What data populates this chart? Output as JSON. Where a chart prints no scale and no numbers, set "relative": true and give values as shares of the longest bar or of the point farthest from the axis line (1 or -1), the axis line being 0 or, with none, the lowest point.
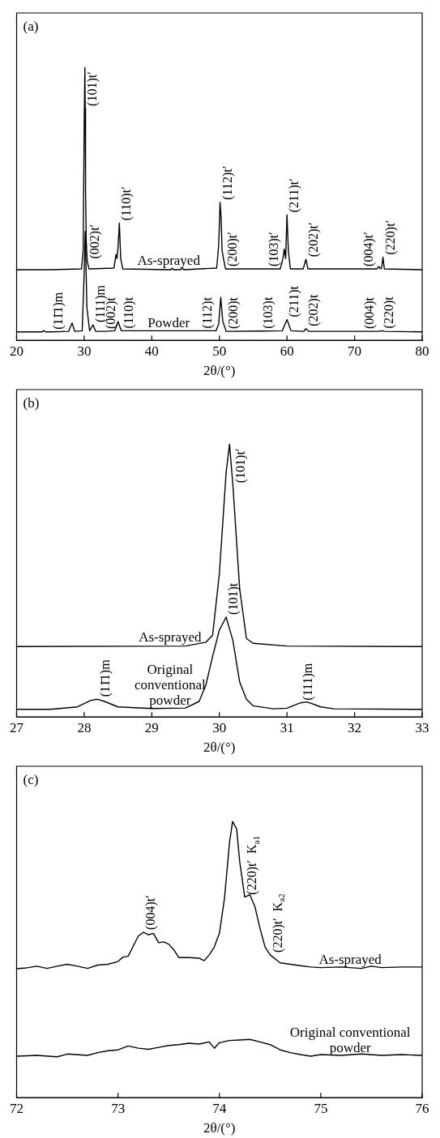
{
  "chart_data": [
    {
      "type": "line",
      "title": "(a)",
      "xlabel": "2θ/(°)",
      "xlim": [
        20,
        80
      ],
      "xticks": [
        20,
        30,
        40,
        50,
        60,
        70,
        80
      ],
      "relative": true,
      "grid": false,
      "legend": false,
      "marker": "none",
      "line_style": "solid",
      "series": [
        {
          "name": "As-sprayed",
          "color": "#000000",
          "x": [
            20,
            25,
            29.6,
            29.85,
            30.0,
            30.1,
            30.15,
            30.2,
            30.3,
            30.45,
            30.7,
            34.4,
            34.7,
            34.85,
            35.0,
            35.2,
            35.4,
            35.7,
            42.8,
            43.0,
            43.2,
            44.3,
            44.5,
            44.7,
            49.6,
            49.9,
            50.1,
            50.25,
            50.4,
            50.6,
            50.9,
            57.0,
            59.0,
            59.4,
            59.6,
            59.8,
            60.0,
            60.2,
            60.5,
            62.4,
            62.8,
            63.1,
            71.0,
            73.3,
            73.6,
            73.8,
            74.0,
            74.2,
            74.4,
            80
          ],
          "values": [
            0.259,
            0.259,
            0.262,
            0.33,
            0.8,
            1.0,
            0.85,
            0.55,
            0.365,
            0.29,
            0.262,
            0.265,
            0.315,
            0.3,
            0.34,
            0.43,
            0.3,
            0.262,
            0.259,
            0.265,
            0.259,
            0.259,
            0.266,
            0.259,
            0.265,
            0.35,
            0.506,
            0.45,
            0.33,
            0.3,
            0.262,
            0.262,
            0.262,
            0.3,
            0.335,
            0.3,
            0.46,
            0.33,
            0.262,
            0.262,
            0.297,
            0.262,
            0.262,
            0.262,
            0.271,
            0.262,
            0.265,
            0.305,
            0.262,
            0.259
          ]
        },
        {
          "name": "Powder",
          "color": "#000000",
          "x": [
            20,
            23.8,
            24.0,
            24.3,
            25.1,
            27.7,
            28.2,
            28.6,
            29.7,
            30.0,
            30.15,
            30.4,
            30.8,
            31.3,
            31.7,
            32.9,
            34.5,
            35.0,
            35.5,
            47.1,
            49.5,
            49.9,
            50.2,
            50.5,
            51.0,
            56.1,
            59.3,
            60.0,
            60.6,
            62.5,
            62.8,
            63.2,
            71.1,
            73.5,
            74.0,
            74.5,
            80
          ],
          "values": [
            0.031,
            0.031,
            0.036,
            0.031,
            0.031,
            0.033,
            0.064,
            0.033,
            0.035,
            0.25,
            0.4,
            0.12,
            0.035,
            0.057,
            0.033,
            0.033,
            0.035,
            0.069,
            0.035,
            0.035,
            0.035,
            0.06,
            0.158,
            0.07,
            0.033,
            0.034,
            0.035,
            0.076,
            0.035,
            0.033,
            0.043,
            0.033,
            0.033,
            0.033,
            0.035,
            0.033,
            0.031
          ]
        }
      ],
      "annotations": [
        {
          "text": "(101)t′",
          "x": 30.15,
          "y": 0.85
        },
        {
          "text": "(002)t′",
          "x": 30.45,
          "y": 0.29
        },
        {
          "text": "(110)t′",
          "x": 35.2,
          "y": 0.43
        },
        {
          "text": "(112)t′",
          "x": 50.1,
          "y": 0.506
        },
        {
          "text": "(200)t′",
          "x": 50.9,
          "y": 0.262
        },
        {
          "text": "(103)t′",
          "x": 57.0,
          "y": 0.262
        },
        {
          "text": "(211)t′",
          "x": 60.0,
          "y": 0.46
        },
        {
          "text": "(202)t′",
          "x": 62.8,
          "y": 0.297
        },
        {
          "text": "(004)t′",
          "x": 71.0,
          "y": 0.262
        },
        {
          "text": "(220)t′",
          "x": 74.2,
          "y": 0.305
        },
        {
          "text": "(11̄1)m",
          "x": 25.1,
          "y": 0.031
        },
        {
          "text": "(111)m",
          "x": 31.3,
          "y": 0.057
        },
        {
          "text": "(002)t",
          "x": 32.9,
          "y": 0.033
        },
        {
          "text": "(110)t",
          "x": 35.5,
          "y": 0.035
        },
        {
          "text": "(112)t",
          "x": 47.1,
          "y": 0.035
        },
        {
          "text": "(200)t",
          "x": 51.0,
          "y": 0.033
        },
        {
          "text": "(103)t",
          "x": 56.1,
          "y": 0.034
        },
        {
          "text": "(211)t",
          "x": 60.0,
          "y": 0.076
        },
        {
          "text": "(202)t",
          "x": 62.8,
          "y": 0.043
        },
        {
          "text": "(004)t",
          "x": 71.1,
          "y": 0.033
        },
        {
          "text": "(220)t",
          "x": 74.0,
          "y": 0.035
        }
      ]
    },
    {
      "type": "line",
      "title": "(b)",
      "xlabel": "2θ/(°)",
      "xlim": [
        27,
        33
      ],
      "xticks": [
        27,
        28,
        29,
        30,
        31,
        32,
        33
      ],
      "relative": true,
      "grid": false,
      "legend": false,
      "marker": "none",
      "line_style": "solid",
      "series": [
        {
          "name": "As-sprayed",
          "color": "#000000",
          "x": [
            27,
            29.5,
            29.8,
            29.9,
            30.0,
            30.1,
            30.15,
            30.2,
            30.3,
            30.4,
            30.5,
            31.0,
            33
          ],
          "values": [
            0.258,
            0.26,
            0.274,
            0.3,
            0.526,
            0.897,
            1.0,
            0.849,
            0.47,
            0.288,
            0.27,
            0.26,
            0.258
          ]
        },
        {
          "name": "Original conventional powder",
          "color": "#000000",
          "x": [
            27,
            27.5,
            27.9,
            28.1,
            28.2,
            28.3,
            28.5,
            29.0,
            29.5,
            29.7,
            29.8,
            29.9,
            30.0,
            30.1,
            30.2,
            30.3,
            30.4,
            30.5,
            30.8,
            31.0,
            31.2,
            31.3,
            31.5,
            31.7,
            33
          ],
          "values": [
            0.028,
            0.028,
            0.037,
            0.061,
            0.065,
            0.057,
            0.037,
            0.031,
            0.033,
            0.057,
            0.117,
            0.222,
            0.319,
            0.366,
            0.28,
            0.128,
            0.065,
            0.041,
            0.03,
            0.032,
            0.052,
            0.055,
            0.037,
            0.03,
            0.028
          ]
        }
      ],
      "annotations": [
        {
          "text": "(101)t′",
          "x": 30.2,
          "y": 0.849
        },
        {
          "text": "(101)t",
          "x": 30.1,
          "y": 0.366
        },
        {
          "text": "(11̄1)m",
          "x": 28.2,
          "y": 0.065
        },
        {
          "text": "(111)m",
          "x": 31.2,
          "y": 0.052
        }
      ]
    },
    {
      "type": "line",
      "title": "(c)",
      "xlabel": "2θ/(°)",
      "xlim": [
        72,
        76
      ],
      "xticks": [
        72,
        73,
        74,
        75,
        76
      ],
      "relative": true,
      "grid": false,
      "legend": false,
      "marker": "none",
      "line_style": "solid",
      "series": [
        {
          "name": "As-sprayed",
          "color": "#000000",
          "x": [
            72.0,
            72.1,
            72.2,
            72.3,
            72.4,
            72.5,
            72.6,
            72.7,
            72.8,
            72.9,
            73.0,
            73.05,
            73.1,
            73.2,
            73.25,
            73.3,
            73.35,
            73.4,
            73.45,
            73.5,
            73.55,
            73.6,
            73.7,
            73.8,
            73.85,
            73.9,
            73.95,
            74.0,
            74.05,
            74.1,
            74.13,
            74.17,
            74.2,
            74.25,
            74.3,
            74.35,
            74.4,
            74.45,
            74.5,
            74.6,
            74.7,
            74.8,
            74.9,
            75.0,
            75.2,
            75.4,
            75.5,
            75.6,
            75.8,
            76.0
          ],
          "values": [
            0.467,
            0.47,
            0.476,
            0.468,
            0.476,
            0.483,
            0.476,
            0.468,
            0.48,
            0.483,
            0.493,
            0.509,
            0.512,
            0.585,
            0.599,
            0.59,
            0.595,
            0.561,
            0.564,
            0.556,
            0.536,
            0.507,
            0.507,
            0.505,
            0.496,
            0.517,
            0.546,
            0.595,
            0.721,
            0.924,
            1.0,
            0.973,
            0.856,
            0.726,
            0.735,
            0.692,
            0.614,
            0.546,
            0.517,
            0.488,
            0.483,
            0.478,
            0.473,
            0.471,
            0.473,
            0.468,
            0.476,
            0.471,
            0.473,
            0.473
          ]
        },
        {
          "name": "Original conventional powder",
          "color": "#000000",
          "x": [
            72.0,
            72.2,
            72.4,
            72.5,
            72.7,
            72.8,
            72.9,
            73.0,
            73.1,
            73.2,
            73.3,
            73.4,
            73.5,
            73.6,
            73.7,
            73.8,
            73.9,
            73.95,
            74.0,
            74.1,
            74.2,
            74.3,
            74.4,
            74.5,
            74.6,
            74.7,
            74.8,
            74.9,
            75.0,
            75.2,
            75.4,
            75.6,
            75.8,
            76.0
          ],
          "values": [
            0.15,
            0.153,
            0.148,
            0.158,
            0.153,
            0.163,
            0.17,
            0.173,
            0.187,
            0.179,
            0.175,
            0.182,
            0.189,
            0.192,
            0.197,
            0.194,
            0.202,
            0.179,
            0.199,
            0.207,
            0.209,
            0.211,
            0.202,
            0.192,
            0.173,
            0.163,
            0.156,
            0.15,
            0.156,
            0.153,
            0.158,
            0.153,
            0.156,
            0.153
          ]
        }
      ],
      "annotations": [
        {
          "text": "(004)t′",
          "x": 73.25,
          "y": 0.599
        },
        {
          "text": "(220)t′  K$_{a1}$",
          "x": 74.25,
          "y": 0.726
        },
        {
          "text": "(220)t′  K$_{a2}$",
          "x": 74.5,
          "y": 0.517
        }
      ]
    }
  ]
}
